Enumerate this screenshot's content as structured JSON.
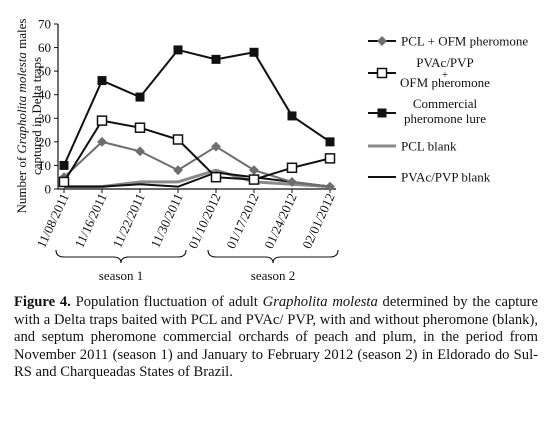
{
  "chart_data": {
    "type": "line",
    "ylabel": {
      "line1_before": "Number of ",
      "line1_italic": "Grapholita molesta",
      "line1_after": " males",
      "line2": "captured in Delta traps"
    },
    "ylim": [
      0,
      70
    ],
    "yticks": [
      0,
      10,
      20,
      30,
      40,
      50,
      60,
      70
    ],
    "categories": [
      "11/08/2011",
      "11/16/2011",
      "11/22/2011",
      "11/30/2011",
      "01/10/2012",
      "01/17/2012",
      "01/24/2012",
      "02/01/2012"
    ],
    "series": [
      {
        "name": "PCL + OFM pheromone",
        "color": "#6e6e6e",
        "marker": "diamond",
        "values": [
          5,
          20,
          16,
          8,
          18,
          8,
          3,
          1
        ]
      },
      {
        "name_line1": "PVAc/PVP",
        "name_line2": "+",
        "name_line3": "OFM pheromone",
        "color": "#111111",
        "marker": "open-square",
        "values": [
          3,
          29,
          26,
          21,
          5,
          4,
          9,
          13
        ]
      },
      {
        "name_line1": "Commercial",
        "name_line2": "pheromone lure",
        "color": "#111111",
        "marker": "filled-square",
        "values": [
          10,
          46,
          39,
          59,
          55,
          58,
          31,
          20
        ]
      },
      {
        "name": "PCL blank",
        "color": "#8a8a8a",
        "marker": "none",
        "values": [
          1,
          1,
          3,
          3,
          8,
          3,
          2,
          1
        ]
      },
      {
        "name": "PVAc/PVP blank",
        "color": "#111111",
        "marker": "none",
        "values": [
          1,
          1,
          2,
          1,
          7,
          5,
          3,
          1
        ]
      }
    ],
    "seasons": [
      {
        "label": "season 1",
        "from": 0,
        "to": 3
      },
      {
        "label": "season 2",
        "from": 4,
        "to": 7
      }
    ],
    "grid": false,
    "legend": "right"
  },
  "caption": {
    "label": "Figure 4.",
    "part1": " Population fluctuation of adult ",
    "species": "Grapholita molesta",
    "part2": " determined by the capture with a Delta traps baited with PCL and PVAc/ PVP, with and without pheromone (blank), and septum pheromone commercial orchards of peach and plum, in the period from November 2011 (season 1) and January to February 2012 (season 2) in Eldorado do Sul-RS and Charqueadas States of Brazil."
  }
}
